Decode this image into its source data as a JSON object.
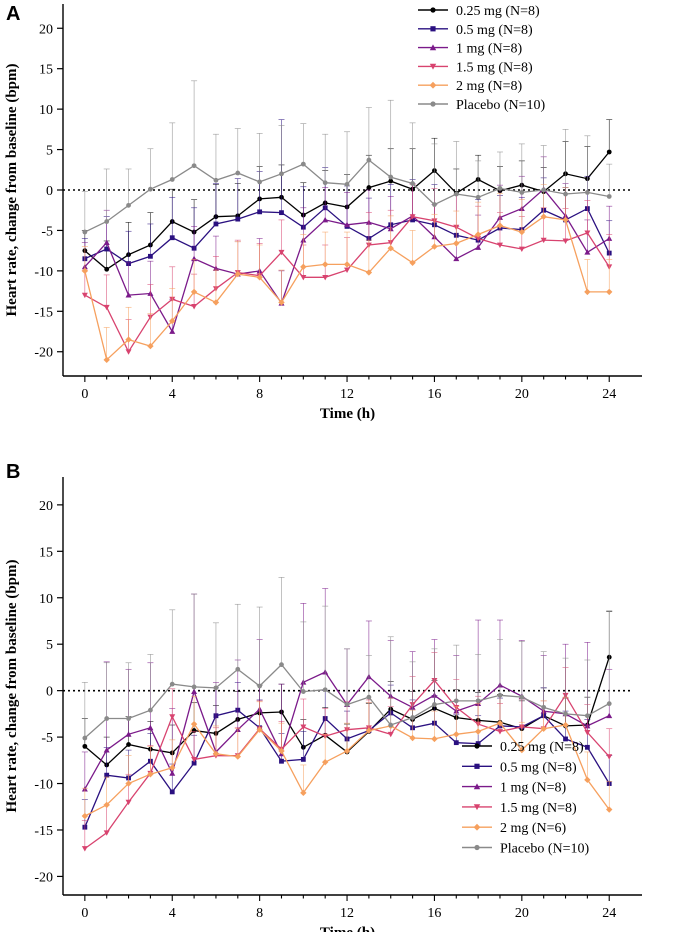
{
  "figure": {
    "panel_labels": [
      "A",
      "B"
    ]
  },
  "chart_data": [
    {
      "panel": "A",
      "type": "line",
      "xlabel": "Time (h)",
      "ylabel": "Heart rate, change from baseline (bpm)",
      "xlim": [
        -1,
        25.5
      ],
      "ylim": [
        -23,
        23
      ],
      "xticks": [
        0,
        4,
        8,
        12,
        16,
        20,
        24
      ],
      "yticks": [
        -20,
        -15,
        -10,
        -5,
        0,
        5,
        10,
        15,
        20
      ],
      "reference_line": 0,
      "legend_position": "top-right",
      "x": [
        0,
        1,
        2,
        3,
        4,
        5,
        6,
        7,
        8,
        9,
        10,
        11,
        12,
        13,
        14,
        15,
        16,
        17,
        18,
        19,
        20,
        21,
        22,
        23,
        24
      ],
      "series": [
        {
          "name": "0.25 mg (N=8)",
          "color": "#000000",
          "marker": "circle",
          "values": [
            -7.5,
            -9.8,
            -8,
            -6.8,
            -3.9,
            -5.2,
            -3.3,
            -3.2,
            -1.1,
            -0.9,
            -3.1,
            -1.6,
            -2.1,
            0.3,
            1.1,
            0.1,
            2.4,
            -0.4,
            1.3,
            -0.1,
            0.6,
            -0.2,
            2.0,
            1.4,
            4.7
          ],
          "err": [
            2.5,
            3.5,
            4,
            4,
            4,
            4,
            4,
            4,
            4,
            4,
            4,
            4,
            4,
            4,
            4,
            5,
            4,
            3,
            3,
            3,
            3,
            3,
            4,
            4,
            4
          ]
        },
        {
          "name": "0.5 mg (N=8)",
          "color": "#2a1080",
          "marker": "square",
          "values": [
            -8.5,
            -7.3,
            -9.1,
            -8.2,
            -5.9,
            -7.2,
            -4.2,
            -3.6,
            -2.7,
            -2.8,
            -4.6,
            -2.2,
            -4.5,
            -6.0,
            -4.3,
            -3.7,
            -4.3,
            -5.6,
            -6.2,
            -4.7,
            -4.9,
            -2.5,
            -3.7,
            -2.3,
            -7.8
          ],
          "err": [
            2.5,
            4,
            4,
            4,
            5,
            5,
            5,
            5,
            5,
            11.5,
            5,
            5,
            5,
            5,
            5,
            5,
            5,
            5,
            5,
            4,
            4,
            4,
            4,
            4,
            4
          ]
        },
        {
          "name": "1 mg (N=8)",
          "color": "#7b1a8a",
          "marker": "triangle-up",
          "values": [
            -9.5,
            -6.5,
            -13,
            -12.8,
            -17.5,
            -8.5,
            -9.7,
            -10.4,
            -10.0,
            -14,
            -6.2,
            -3.7,
            -4.3,
            -4.0,
            -4.8,
            -3.2,
            -5.8,
            -8.5,
            -7.1,
            -3.4,
            -2.3,
            0.1,
            -3.2,
            -7.7,
            -6.0
          ],
          "err": [
            3,
            4,
            4,
            4,
            4,
            4,
            4,
            4,
            4,
            4,
            4,
            4,
            4,
            4,
            4,
            4,
            4,
            4,
            4,
            4,
            4,
            4,
            4,
            4,
            4
          ]
        },
        {
          "name": "1.5 mg (N=8)",
          "color": "#d8436f",
          "marker": "triangle-down",
          "values": [
            -13,
            -14.5,
            -20,
            -15.7,
            -13.5,
            -14.4,
            -12.2,
            -10.2,
            -10.6,
            -7.7,
            -10.8,
            -10.8,
            -9.9,
            -6.8,
            -6.5,
            -3.3,
            -3.8,
            -4.6,
            -6.0,
            -6.8,
            -7.3,
            -6.2,
            -6.3,
            -5.3,
            -9.5
          ],
          "err": [
            3,
            4,
            4,
            4,
            4,
            4,
            4,
            4,
            4,
            4,
            4,
            4,
            4,
            4,
            4,
            4,
            4,
            4,
            4,
            4,
            4,
            4,
            4,
            4,
            4
          ]
        },
        {
          "name": "2 mg (N=8)",
          "color": "#f6a05e",
          "marker": "diamond",
          "values": [
            -10,
            -21,
            -18.5,
            -19.3,
            -16.2,
            -12.6,
            -13.9,
            -10.4,
            -10.8,
            -13.9,
            -9.5,
            -9.2,
            -9.2,
            -10.2,
            -7.2,
            -9.0,
            -7.0,
            -6.6,
            -5.5,
            -4.4,
            -5.2,
            -3.3,
            -3.7,
            -12.6,
            -12.6
          ],
          "err": [
            3,
            4,
            4,
            4,
            4,
            4,
            4,
            4,
            4,
            4,
            4,
            4,
            4,
            4,
            4,
            4,
            4,
            4,
            4,
            4,
            4,
            4,
            4,
            4,
            4
          ]
        },
        {
          "name": "Placebo (N=10)",
          "color": "#8a8a8a",
          "marker": "circle",
          "values": [
            -5.2,
            -3.9,
            -1.9,
            0.1,
            1.3,
            3.0,
            1.2,
            2.1,
            1.0,
            2.0,
            3.2,
            0.9,
            0.7,
            3.7,
            1.6,
            0.8,
            -1.8,
            -0.5,
            -0.9,
            0.2,
            -0.3,
            0.0,
            -0.5,
            -0.3,
            -0.8
          ],
          "err": [
            5,
            6.5,
            4.5,
            5,
            7,
            10.5,
            5.7,
            5.5,
            6,
            6,
            5,
            6,
            6.5,
            6.5,
            9.5,
            7.5,
            7.5,
            6.5,
            4.5,
            4.5,
            6,
            5.5,
            8,
            7,
            4
          ]
        }
      ]
    },
    {
      "panel": "B",
      "type": "line",
      "xlabel": "Time (h)",
      "ylabel": "Heart rate, change from baseline (bpm)",
      "xlim": [
        -1,
        25.5
      ],
      "ylim": [
        -22,
        23
      ],
      "xticks": [
        0,
        4,
        8,
        12,
        16,
        20,
        24
      ],
      "yticks": [
        -20,
        -15,
        -10,
        -5,
        0,
        5,
        10,
        15,
        20
      ],
      "reference_line": 0,
      "legend_position": "bottom-right",
      "x": [
        0,
        1,
        2,
        3,
        4,
        5,
        6,
        7,
        8,
        9,
        10,
        11,
        12,
        13,
        14,
        15,
        16,
        17,
        18,
        19,
        20,
        21,
        22,
        23,
        24
      ],
      "series": [
        {
          "name": "0.25 mg (N=8)",
          "color": "#000000",
          "marker": "circle",
          "values": [
            -6.0,
            -8.0,
            -5.8,
            -6.3,
            -6.7,
            -4.3,
            -4.6,
            -3.1,
            -2.4,
            -2.3,
            -6.1,
            -4.8,
            -6.6,
            -4.4,
            -2.0,
            -3.1,
            -1.9,
            -2.9,
            -3.2,
            -3.4,
            -4.1,
            -2.7,
            -3.8,
            -3.7,
            3.6
          ],
          "err": [
            3,
            3,
            3,
            3,
            3,
            3,
            3,
            3,
            3,
            3,
            3,
            3,
            3,
            3,
            3,
            3,
            3,
            3,
            3,
            3,
            3,
            3,
            3,
            3,
            4.9
          ]
        },
        {
          "name": "0.5 mg (N=8)",
          "color": "#2a1080",
          "marker": "square",
          "values": [
            -14.7,
            -9.1,
            -9.4,
            -7.6,
            -10.9,
            -7.8,
            -2.7,
            -2.1,
            -4.0,
            -7.6,
            -7.4,
            -3.0,
            -5.2,
            -4.3,
            -2.4,
            -4.0,
            -3.5,
            -5.6,
            -5.7,
            -3.8,
            -3.9,
            -2.7,
            -5.2,
            -6.1,
            -10.0
          ],
          "err": [
            3,
            3,
            3,
            3,
            3,
            3,
            3,
            3,
            3,
            3,
            3,
            3,
            3,
            3,
            3,
            3,
            3,
            3,
            3,
            3,
            3,
            3,
            3,
            3,
            3
          ]
        },
        {
          "name": "1 mg (N=8)",
          "color": "#7b1a8a",
          "marker": "triangle-up",
          "values": [
            -10.6,
            -6.4,
            -4.7,
            -4.0,
            -8.9,
            -0.1,
            -6.6,
            -4.2,
            -2.0,
            -6.8,
            0.9,
            2.0,
            -1.5,
            1.5,
            -0.6,
            -1.8,
            -0.5,
            -2.2,
            -1.4,
            0.6,
            -0.6,
            -2.2,
            -2.5,
            -3.8,
            -2.7
          ],
          "err": [
            4,
            9.5,
            7,
            7,
            7,
            10.5,
            7.5,
            7.5,
            7.5,
            7.5,
            8.5,
            9,
            6,
            6,
            6,
            6,
            6,
            6,
            9,
            7,
            6,
            6,
            7.5,
            9,
            5
          ]
        },
        {
          "name": "1.5 mg (N=8)",
          "color": "#d8436f",
          "marker": "triangle-down",
          "values": [
            -17.0,
            -15.3,
            -12.0,
            -8.9,
            -2.8,
            -7.4,
            -7.0,
            -7.0,
            -4.1,
            -6.3,
            -3.9,
            -4.9,
            -4.2,
            -4.0,
            -4.7,
            -1.5,
            1.1,
            -1.8,
            -3.6,
            -4.4,
            -3.9,
            -4.1,
            -0.5,
            -4.5,
            -7.1
          ],
          "err": [
            3,
            3,
            3,
            3,
            3,
            3,
            3,
            3,
            3,
            3,
            3,
            3,
            3,
            3,
            3,
            3,
            3,
            3,
            3,
            3,
            3,
            3,
            3,
            3,
            3
          ]
        },
        {
          "name": "2 mg (N=6)",
          "color": "#f6a05e",
          "marker": "diamond",
          "values": [
            -13.5,
            -12.3,
            -10.0,
            -9.0,
            -8.3,
            -3.6,
            -6.8,
            -7.1,
            -4.2,
            -6.5,
            -11.0,
            -7.7,
            -6.5,
            -4.3,
            -3.8,
            -5.1,
            -5.2,
            -4.7,
            -4.4,
            -3.5,
            -6.4,
            -4.1,
            -3.7,
            -9.6,
            -12.8
          ],
          "err": [
            3,
            3,
            3,
            3,
            3,
            3,
            3,
            3,
            3,
            3,
            3,
            3,
            3,
            3,
            3,
            3,
            3,
            3,
            3,
            3,
            3,
            3,
            3,
            3,
            3
          ]
        },
        {
          "name": "Placebo (N=10)",
          "color": "#8a8a8a",
          "marker": "circle",
          "values": [
            -5.1,
            -3.0,
            -3.0,
            -2.1,
            0.7,
            0.4,
            0.3,
            2.3,
            0.5,
            2.8,
            -0.1,
            0.1,
            -1.5,
            -0.7,
            -3.7,
            -2.9,
            -1.5,
            -1.1,
            -1.1,
            -0.5,
            -0.7,
            -1.8,
            -2.5,
            -2.7,
            -1.4
          ],
          "err": [
            6,
            6,
            6,
            6,
            8,
            10,
            7,
            7,
            8.5,
            9.4,
            7.5,
            9,
            6,
            4.5,
            9.5,
            6,
            6,
            6,
            5,
            6,
            6,
            6,
            6,
            6,
            10
          ]
        }
      ]
    }
  ]
}
